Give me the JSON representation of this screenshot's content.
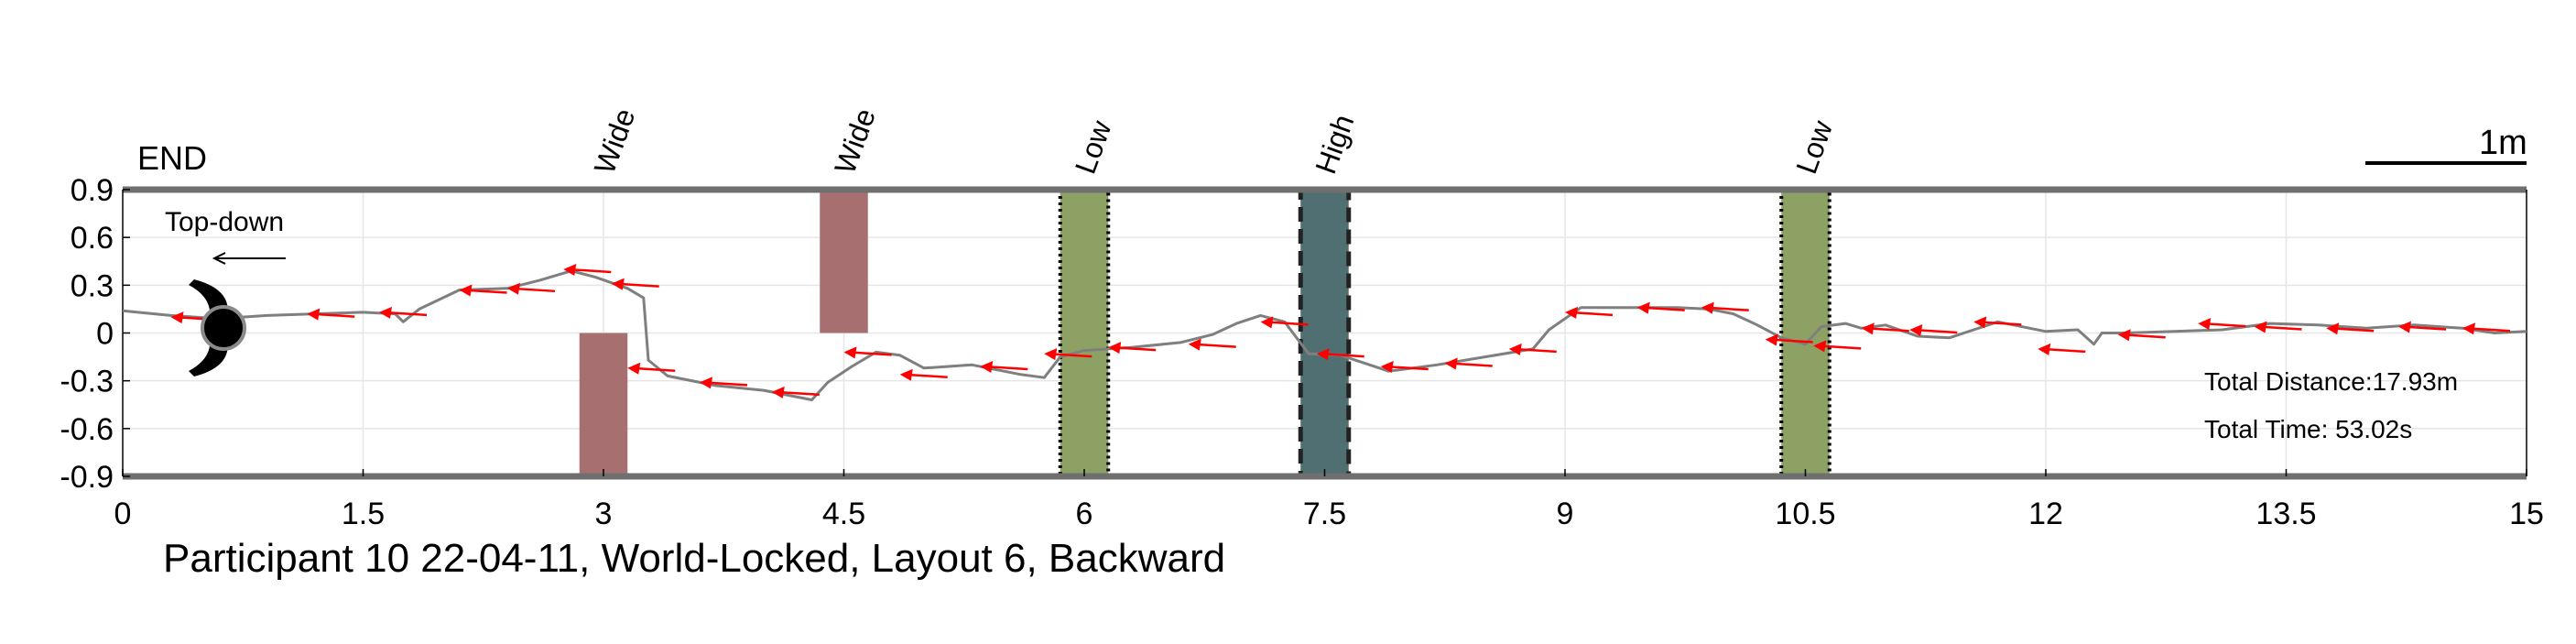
{
  "chart_data": {
    "type": "line",
    "title": "Participant 10 22-04-11, World-Locked, Layout 6, Backward",
    "xlabel": "",
    "ylabel": "",
    "xlim": [
      0,
      15
    ],
    "ylim": [
      -0.9,
      0.9
    ],
    "x_ticks": [
      "0",
      "1.5",
      "3",
      "4.5",
      "6",
      "7.5",
      "9",
      "10.5",
      "12",
      "13.5",
      "15"
    ],
    "x_tick_values": [
      0,
      1.5,
      3,
      4.5,
      6,
      7.5,
      9,
      10.5,
      12,
      13.5,
      15
    ],
    "y_ticks": [
      "0.9",
      "0.6",
      "0.3",
      "0",
      "-0.3",
      "-0.6",
      "-0.9"
    ],
    "y_tick_values": [
      0.9,
      0.6,
      0.3,
      0,
      -0.3,
      -0.6,
      -0.9
    ],
    "grid": true,
    "colors": {
      "path": "#7f7f7f",
      "arrows": "#ff0000",
      "obstacle_wide": "#a86f70",
      "obstacle_low": "#8ea164",
      "obstacle_high": "#4f6f72",
      "axis_frame": "#6f6f6f"
    },
    "series": [
      {
        "x": [
          0.0,
          0.3,
          0.6,
          0.9,
          1.2,
          1.5,
          1.7,
          1.75,
          1.85,
          2.1,
          2.4,
          2.6,
          2.8,
          2.95,
          3.15,
          3.25,
          3.28,
          3.4,
          3.7,
          4.0,
          4.3,
          4.4,
          4.55,
          4.7,
          4.85,
          5.0,
          5.3,
          5.6,
          5.75,
          5.85,
          6.0,
          6.3,
          6.6,
          6.8,
          6.95,
          7.1,
          7.25,
          7.4,
          7.6,
          7.9,
          8.2,
          8.5,
          8.8,
          8.9,
          9.1,
          9.4,
          9.7,
          9.9,
          10.05,
          10.2,
          10.35,
          10.5,
          10.6,
          10.75,
          10.85,
          11.0,
          11.2,
          11.4,
          11.7,
          12.0,
          12.2,
          12.3,
          12.35,
          12.5,
          12.8,
          13.1,
          13.4,
          13.7,
          14.0,
          14.3,
          14.6,
          14.8,
          15.0
        ],
        "y": [
          0.14,
          0.11,
          0.09,
          0.11,
          0.12,
          0.13,
          0.12,
          0.07,
          0.15,
          0.27,
          0.28,
          0.33,
          0.39,
          0.35,
          0.28,
          0.22,
          -0.17,
          -0.27,
          -0.33,
          -0.36,
          -0.42,
          -0.31,
          -0.21,
          -0.12,
          -0.14,
          -0.22,
          -0.2,
          -0.26,
          -0.28,
          -0.15,
          -0.11,
          -0.09,
          -0.06,
          -0.01,
          0.06,
          0.11,
          0.07,
          -0.13,
          -0.14,
          -0.24,
          -0.2,
          -0.15,
          -0.1,
          0.02,
          0.16,
          0.16,
          0.16,
          0.15,
          0.12,
          0.05,
          -0.03,
          -0.07,
          0.04,
          0.06,
          0.03,
          0.05,
          -0.02,
          -0.03,
          0.07,
          0.01,
          0.02,
          -0.07,
          0.0,
          0.0,
          0.01,
          0.02,
          0.06,
          0.05,
          0.03,
          0.05,
          0.03,
          0.0,
          0.01
        ]
      }
    ],
    "direction_arrows": [
      {
        "x": 0.3,
        "y": 0.1
      },
      {
        "x": 1.15,
        "y": 0.12
      },
      {
        "x": 1.6,
        "y": 0.13
      },
      {
        "x": 2.1,
        "y": 0.27
      },
      {
        "x": 2.4,
        "y": 0.28
      },
      {
        "x": 2.75,
        "y": 0.4
      },
      {
        "x": 3.05,
        "y": 0.31
      },
      {
        "x": 3.15,
        "y": -0.22
      },
      {
        "x": 3.6,
        "y": -0.31
      },
      {
        "x": 4.05,
        "y": -0.37
      },
      {
        "x": 4.5,
        "y": -0.12
      },
      {
        "x": 4.85,
        "y": -0.26
      },
      {
        "x": 5.35,
        "y": -0.21
      },
      {
        "x": 5.75,
        "y": -0.13
      },
      {
        "x": 6.15,
        "y": -0.09
      },
      {
        "x": 6.65,
        "y": -0.07
      },
      {
        "x": 7.1,
        "y": 0.07
      },
      {
        "x": 7.45,
        "y": -0.13
      },
      {
        "x": 7.85,
        "y": -0.21
      },
      {
        "x": 8.25,
        "y": -0.19
      },
      {
        "x": 8.65,
        "y": -0.1
      },
      {
        "x": 9.0,
        "y": 0.13
      },
      {
        "x": 9.45,
        "y": 0.16
      },
      {
        "x": 9.85,
        "y": 0.16
      },
      {
        "x": 10.25,
        "y": -0.04
      },
      {
        "x": 10.55,
        "y": -0.08
      },
      {
        "x": 10.85,
        "y": 0.03
      },
      {
        "x": 11.15,
        "y": 0.02
      },
      {
        "x": 11.55,
        "y": 0.07
      },
      {
        "x": 11.95,
        "y": -0.1
      },
      {
        "x": 12.45,
        "y": -0.01
      },
      {
        "x": 12.95,
        "y": 0.06
      },
      {
        "x": 13.3,
        "y": 0.04
      },
      {
        "x": 13.75,
        "y": 0.03
      },
      {
        "x": 14.2,
        "y": 0.04
      },
      {
        "x": 14.6,
        "y": 0.03
      }
    ],
    "obstacles": [
      {
        "type": "Wide",
        "label": "Wide",
        "x_start": 2.85,
        "x_end": 3.15,
        "y_start": -0.9,
        "y_end": 0.0,
        "border": "none"
      },
      {
        "type": "Wide",
        "label": "Wide",
        "x_start": 4.35,
        "x_end": 4.65,
        "y_start": 0.0,
        "y_end": 0.9,
        "border": "none"
      },
      {
        "type": "Low",
        "label": "Low",
        "x_start": 5.85,
        "x_end": 6.15,
        "y_start": -0.9,
        "y_end": 0.9,
        "border": "dotted"
      },
      {
        "type": "High",
        "label": "High",
        "x_start": 7.35,
        "x_end": 7.65,
        "y_start": -0.9,
        "y_end": 0.9,
        "border": "dashed"
      },
      {
        "type": "Low",
        "label": "Low",
        "x_start": 10.35,
        "x_end": 10.65,
        "y_start": -0.9,
        "y_end": 0.9,
        "border": "dotted"
      }
    ],
    "end_label": "END",
    "view_label": "Top-down",
    "scale_label": "1m",
    "stats": {
      "total_distance": "Total Distance:17.93m",
      "total_time": "Total Time: 53.02s"
    }
  }
}
